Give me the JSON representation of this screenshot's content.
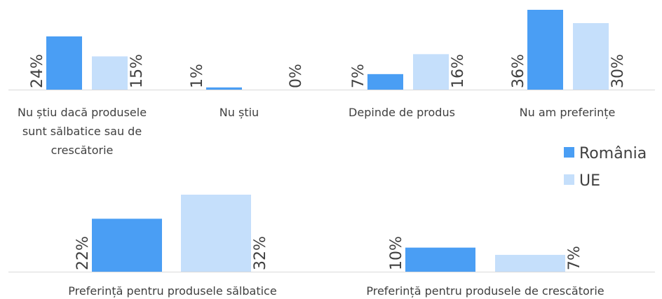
{
  "chart_data": [
    {
      "type": "bar",
      "categories": [
        "Nu știu dacă produsele sunt sălbatice sau de crescătorie",
        "Nu știu",
        "Depinde de produs",
        "Nu am preferințe"
      ],
      "category_lines": [
        [
          "Nu știu dacă produsele",
          "sunt sălbatice sau de",
          "crescătorie"
        ],
        [
          "Nu știu"
        ],
        [
          "Depinde de produs"
        ],
        [
          "Nu am preferințe"
        ]
      ],
      "series": [
        {
          "name": "România",
          "values": [
            24,
            1,
            7,
            36
          ],
          "labels": [
            "24%",
            "1%",
            "7%",
            "36%"
          ]
        },
        {
          "name": "UE",
          "values": [
            15,
            0,
            16,
            30
          ],
          "labels": [
            "15%",
            "0%",
            "16%",
            "30%"
          ]
        }
      ],
      "ylim": [
        0,
        40
      ]
    },
    {
      "type": "bar",
      "categories": [
        "Preferință pentru produsele sălbatice",
        "Preferință pentru produsele de crescătorie"
      ],
      "category_lines": [
        [
          "Preferință pentru produsele sălbatice"
        ],
        [
          "Preferință pentru produsele de crescătorie"
        ]
      ],
      "series": [
        {
          "name": "România",
          "values": [
            22,
            10
          ],
          "labels": [
            "22%",
            "10%"
          ]
        },
        {
          "name": "UE",
          "values": [
            32,
            7
          ],
          "labels": [
            "32%",
            "7%"
          ]
        }
      ],
      "ylim": [
        0,
        40
      ]
    }
  ],
  "legend": {
    "position": "right",
    "items": [
      {
        "label": "România",
        "color": "#4a9ef4"
      },
      {
        "label": "UE",
        "color": "#c5dffb"
      }
    ]
  },
  "colors": {
    "romania": "#4a9ef4",
    "ue": "#c5dffb",
    "axis": "#d9d9d9",
    "text": "#404040"
  }
}
